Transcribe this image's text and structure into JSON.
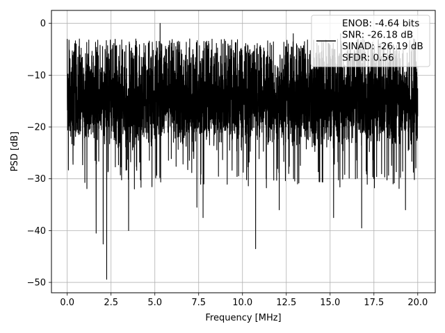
{
  "chart_data": {
    "type": "line",
    "title": "",
    "xlabel": "Frequency [MHz]",
    "ylabel": "PSD [dB]",
    "xlim": [
      -0.9,
      21.0
    ],
    "ylim": [
      -52,
      2.5
    ],
    "xticks": [
      0.0,
      2.5,
      5.0,
      7.5,
      10.0,
      12.5,
      15.0,
      17.5,
      20.0
    ],
    "xtick_labels": [
      "0.0",
      "2.5",
      "5.0",
      "7.5",
      "10.0",
      "12.5",
      "15.0",
      "17.5",
      "20.0"
    ],
    "yticks": [
      0,
      -10,
      -20,
      -30,
      -40,
      -50
    ],
    "ytick_labels": [
      "0",
      "−10",
      "−20",
      "−30",
      "−40",
      "−50"
    ],
    "grid": true,
    "legend_position": "top-right",
    "series": [
      {
        "color": "#000000",
        "x_start": 0.0,
        "x_end": 20.0,
        "typical_range": [
          -25,
          -5
        ],
        "peak_max": 0.0,
        "peaks": [
          [
            0.0,
            -3
          ],
          [
            5.3,
            0
          ],
          [
            7.4,
            -1
          ],
          [
            12.9,
            -2
          ],
          [
            15.6,
            -2
          ]
        ],
        "dips": [
          [
            1.65,
            -40.5
          ],
          [
            2.05,
            -42.6
          ],
          [
            2.25,
            -49.4
          ],
          [
            3.5,
            -40
          ],
          [
            7.4,
            -35.5
          ],
          [
            7.75,
            -37.5
          ],
          [
            10.75,
            -43.5
          ],
          [
            12.1,
            -36
          ],
          [
            15.2,
            -37.5
          ],
          [
            16.8,
            -39.5
          ],
          [
            19.3,
            -36
          ]
        ]
      }
    ],
    "legend": {
      "lines": [
        "ENOB: -4.64 bits",
        "SNR: -26.18 dB",
        "SINAD: -26.19 dB",
        "SFDR: 0.56"
      ]
    }
  }
}
